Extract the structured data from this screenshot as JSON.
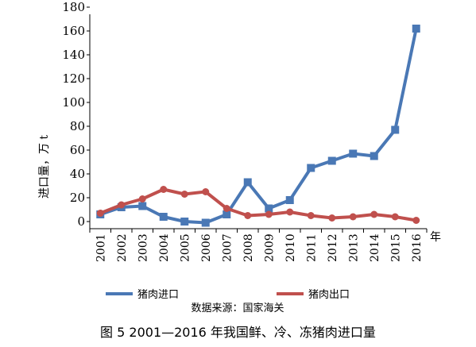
{
  "chart_data": {
    "type": "line",
    "categories": [
      "2001",
      "2002",
      "2003",
      "2004",
      "2005",
      "2006",
      "2007",
      "2008",
      "2009",
      "2010",
      "2011",
      "2012",
      "2013",
      "2014",
      "2015",
      "2016"
    ],
    "series": [
      {
        "name": "猪肉进口",
        "color": "#4a78b5",
        "marker": "square",
        "values": [
          6,
          12,
          13,
          4,
          0,
          -1,
          6,
          33,
          11,
          18,
          45,
          51,
          57,
          55,
          77,
          162
        ]
      },
      {
        "name": "猪肉出口",
        "color": "#c0504d",
        "marker": "circle",
        "values": [
          7,
          14,
          19,
          27,
          23,
          25,
          11,
          5,
          6,
          8,
          5,
          3,
          4,
          6,
          4,
          1
        ]
      }
    ],
    "ylabel": "进口量，万 t",
    "xlabel": "年",
    "yticks": [
      0,
      20,
      40,
      60,
      80,
      100,
      120,
      140,
      160,
      180
    ],
    "ylim": [
      -6,
      186
    ],
    "legend_position": "bottom",
    "source": "数据来源：国家海关"
  },
  "caption": "图 5 2001—2016 年我国鲜、冷、冻猪肉进口量"
}
